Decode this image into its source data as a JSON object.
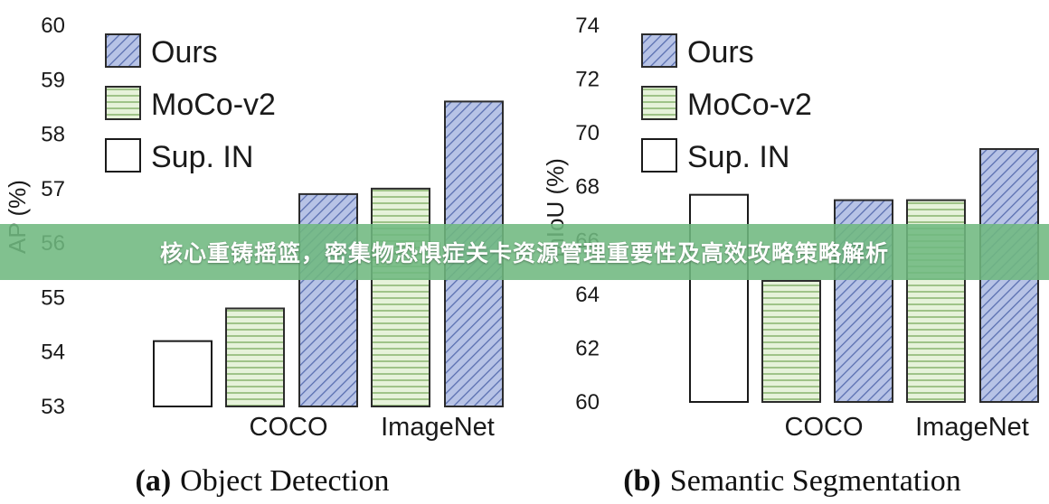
{
  "banner": {
    "text": "核心重铸摇篮，密集物恐惧症关卡资源管理重要性及高效攻略策略解析"
  },
  "legend": [
    {
      "label": "Ours",
      "pattern": "diag",
      "color": "#5a6fb0",
      "fill": "#b7c3e6"
    },
    {
      "label": "MoCo-v2",
      "pattern": "horiz",
      "color": "#8fb57a",
      "fill": "#e3f0d6"
    },
    {
      "label": "Sup. IN",
      "pattern": "none",
      "color": "#222222",
      "fill": "#ffffff"
    }
  ],
  "chart_data": [
    {
      "type": "bar",
      "caption_letter": "(a)",
      "caption_text": "Object Detection",
      "ylabel": "AP (%)",
      "ylim": [
        53,
        60
      ],
      "yticks": [
        53,
        54,
        55,
        56,
        57,
        58,
        59,
        60
      ],
      "groups": [
        {
          "label": "COCO",
          "bars": [
            {
              "series": "Sup. IN",
              "value": 54.2
            },
            {
              "series": "MoCo-v2",
              "value": 54.8
            },
            {
              "series": "Ours",
              "value": 56.9
            }
          ]
        },
        {
          "label": "ImageNet",
          "bars": [
            {
              "series": "MoCo-v2",
              "value": 57.0
            },
            {
              "series": "Ours",
              "value": 58.6
            }
          ]
        }
      ],
      "legend_position": "top-left"
    },
    {
      "type": "bar",
      "caption_letter": "(b)",
      "caption_text": "Semantic Segmentation",
      "ylabel": "mIoU (%)",
      "ylim": [
        60,
        74
      ],
      "yticks": [
        60,
        62,
        64,
        66,
        68,
        70,
        72,
        74
      ],
      "groups": [
        {
          "label": "COCO",
          "bars": [
            {
              "series": "Sup. IN",
              "value": 67.7
            },
            {
              "series": "MoCo-v2",
              "value": 64.5
            },
            {
              "series": "Ours",
              "value": 67.5
            }
          ]
        },
        {
          "label": "ImageNet",
          "bars": [
            {
              "series": "MoCo-v2",
              "value": 67.5
            },
            {
              "series": "Ours",
              "value": 69.4
            }
          ]
        }
      ],
      "legend_position": "top-left"
    }
  ]
}
